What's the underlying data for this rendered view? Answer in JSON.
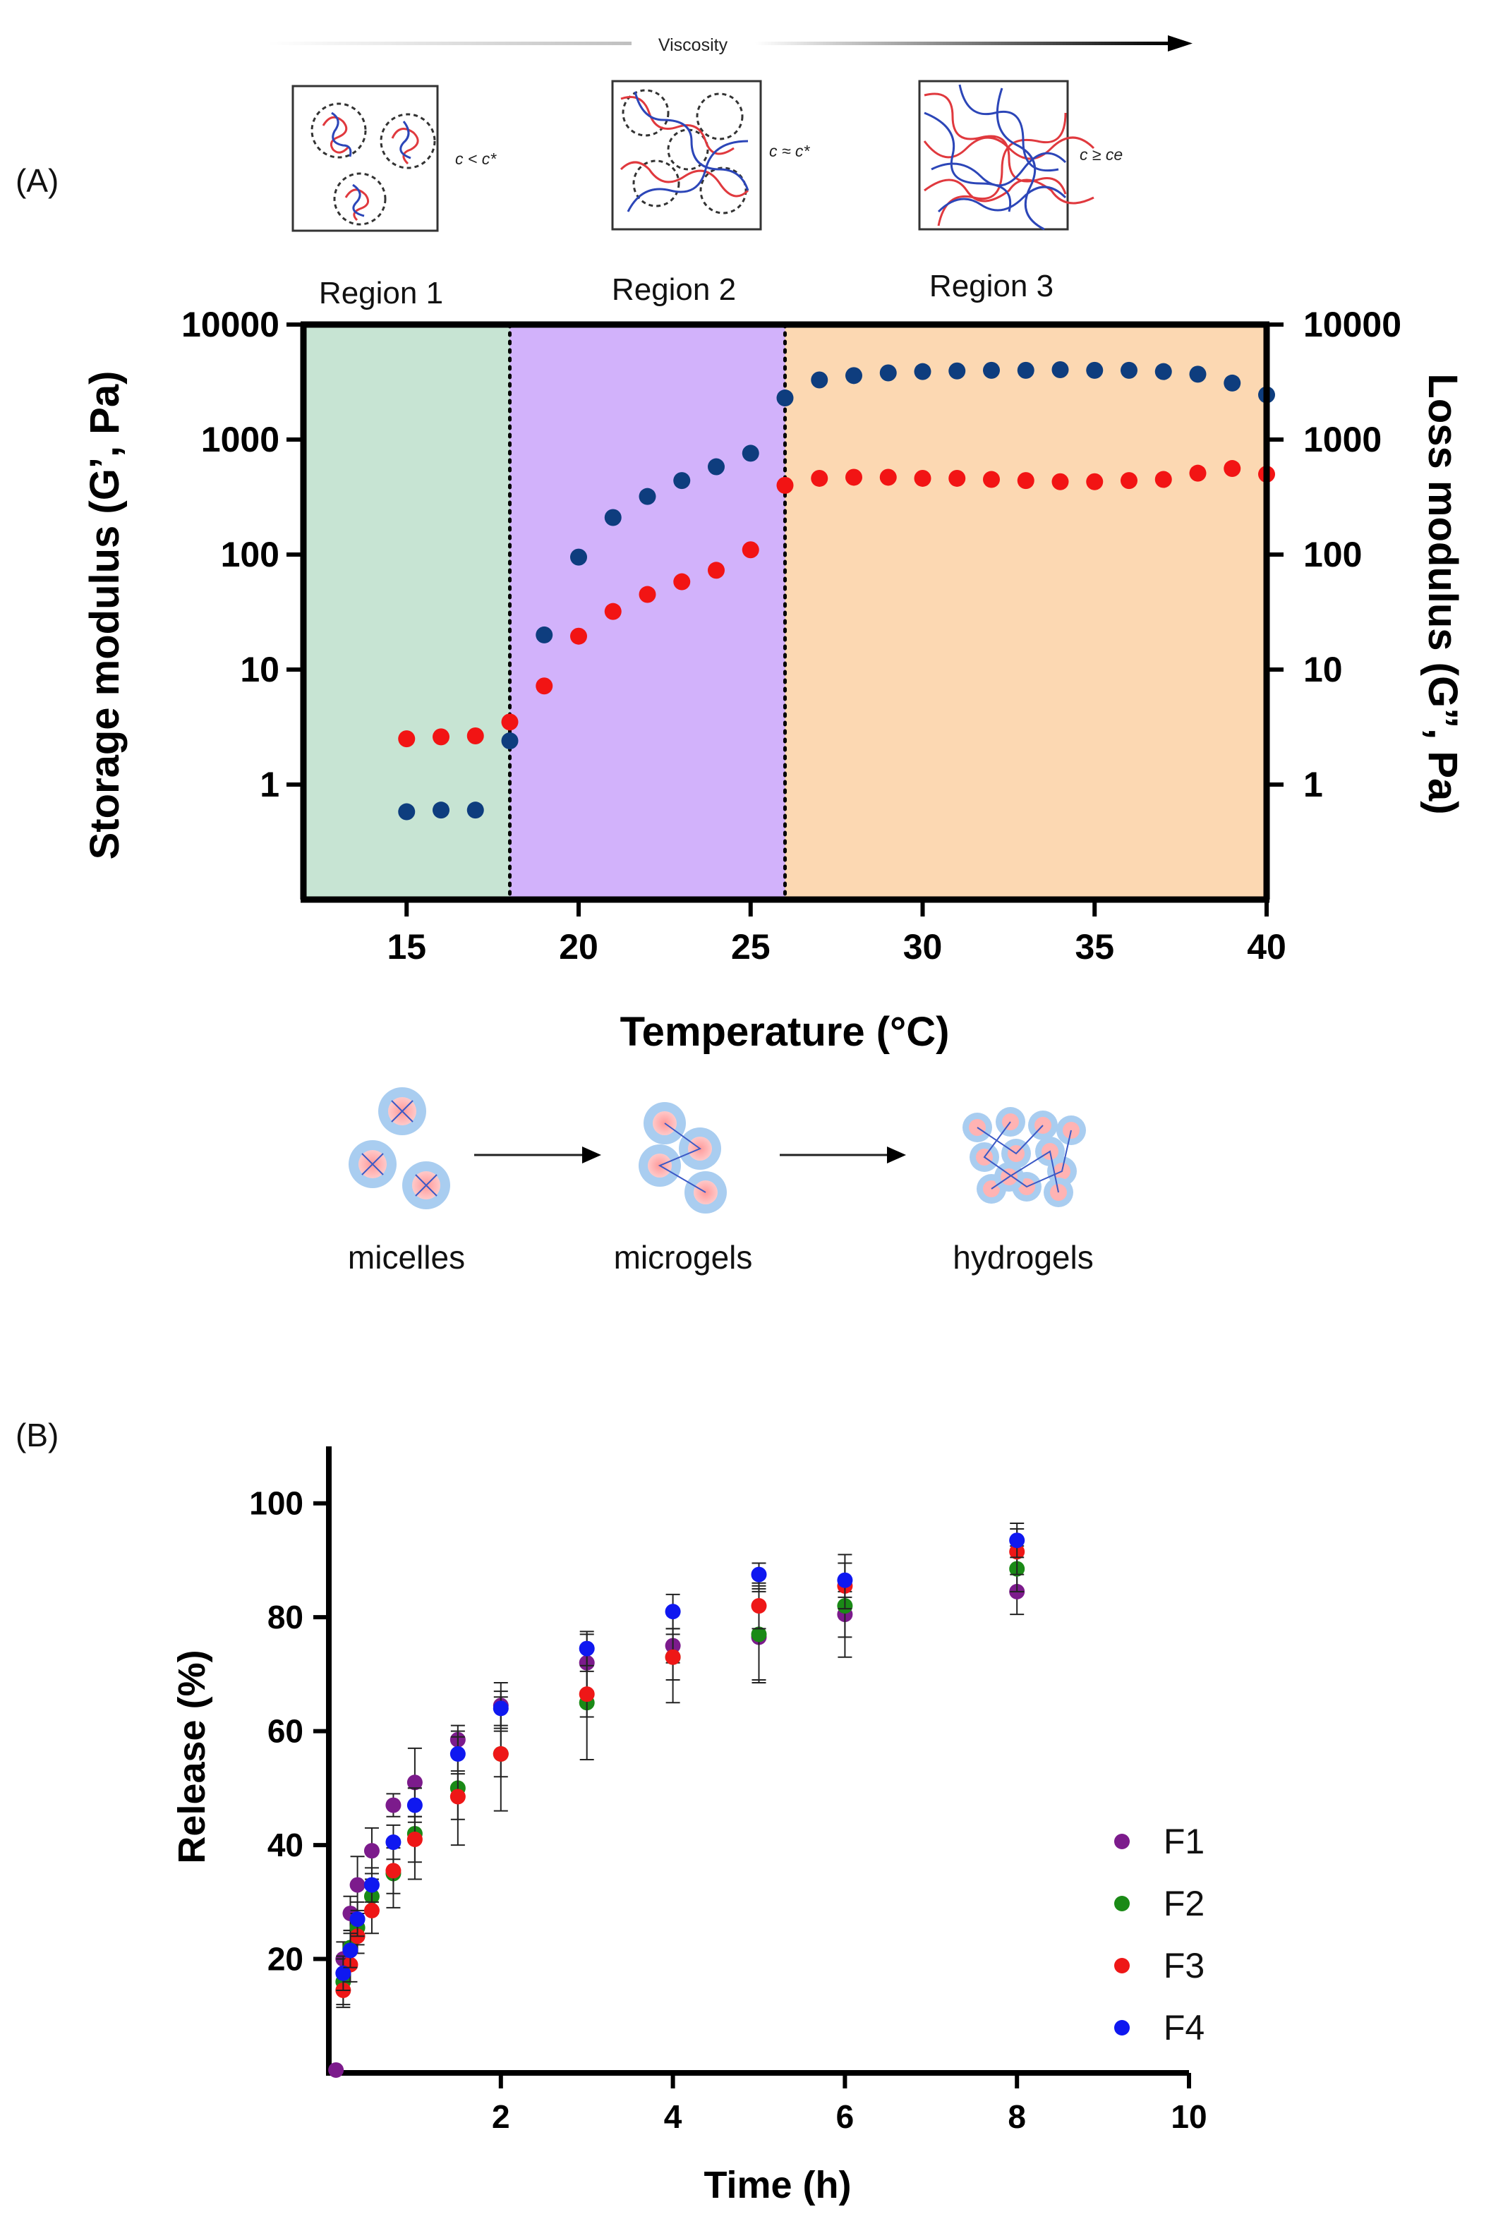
{
  "panel_labels": {
    "a": "(A)",
    "b": "(B)"
  },
  "schematic": {
    "viscosity_label": "Viscosity",
    "concentration_labels": [
      "c < c*",
      "c ≈ c*",
      "c ≥ ce"
    ],
    "stage_labels": [
      "micelles",
      "microgels",
      "hydrogels"
    ]
  },
  "colors": {
    "region1": "#c7e4d3",
    "region2": "#d2b2fb",
    "region3": "#fcd8b2",
    "storage": "#0e3d7e",
    "loss": "#f21414",
    "F1": "#7c1b8c",
    "F2": "#1a8a16",
    "F3": "#ee1717",
    "F4": "#0f18f0"
  },
  "chart_data": [
    {
      "type": "scatter",
      "xlabel": "Temperature (°C)",
      "ylabel": "Storage modulus (G’, Pa)",
      "ylabel_right": "Loss modulus (G”, Pa)",
      "xlim": [
        12,
        40
      ],
      "ylim": [
        0.1,
        10000
      ],
      "yscale": "log",
      "x_ticks": [
        15,
        20,
        25,
        30,
        35,
        40
      ],
      "y_ticks": [
        1,
        10,
        100,
        1000,
        10000
      ],
      "y_tick_labels": [
        "1",
        "10",
        "100",
        "1000",
        "10000"
      ],
      "region_labels": [
        "Region 1",
        "Region 2",
        "Region 3"
      ],
      "region_bounds": [
        [
          12,
          18
        ],
        [
          18,
          26
        ],
        [
          26,
          40
        ]
      ],
      "boundaries": [
        18,
        26
      ],
      "series": [
        {
          "key": "storage",
          "x": [
            15,
            16,
            17,
            18,
            19,
            20,
            21,
            22,
            23,
            24,
            25,
            26,
            27,
            28,
            29,
            30,
            31,
            32,
            33,
            34,
            35,
            36,
            37,
            38,
            39,
            40
          ],
          "y": [
            0.58,
            0.6,
            0.6,
            2.4,
            20,
            95,
            210,
            320,
            440,
            580,
            760,
            2300,
            3300,
            3600,
            3800,
            3900,
            3950,
            4000,
            4000,
            4050,
            4000,
            4000,
            3900,
            3700,
            3100,
            2450
          ]
        },
        {
          "key": "loss",
          "x": [
            15,
            16,
            17,
            18,
            19,
            20,
            21,
            22,
            23,
            24,
            25,
            26,
            27,
            28,
            29,
            30,
            31,
            32,
            33,
            34,
            35,
            36,
            37,
            38,
            39,
            40
          ],
          "y": [
            2.5,
            2.6,
            2.65,
            3.5,
            7.2,
            19.5,
            32,
            45,
            58,
            73,
            110,
            400,
            460,
            470,
            470,
            460,
            460,
            450,
            440,
            430,
            430,
            440,
            450,
            510,
            560,
            500
          ]
        }
      ]
    },
    {
      "type": "scatter",
      "xlabel": "Time (h)",
      "ylabel": "Release (%)",
      "xlim": [
        0,
        10
      ],
      "ylim": [
        0,
        110
      ],
      "x_ticks": [
        2,
        4,
        6,
        8,
        10
      ],
      "y_ticks": [
        20,
        40,
        60,
        80,
        100
      ],
      "error_bars": true,
      "legend_position": "bottom-right",
      "series": [
        {
          "name": "F1",
          "x": [
            0.083,
            0.167,
            0.25,
            0.333,
            0.5,
            0.75,
            1,
            1.5,
            2,
            3,
            4,
            5,
            6,
            8
          ],
          "y": [
            0.5,
            20,
            28,
            33,
            39,
            47,
            51,
            58.5,
            64.5,
            72,
            75,
            76.5,
            80.5,
            84.5
          ],
          "err": [
            0,
            3,
            3,
            5,
            4,
            2,
            6,
            2.5,
            4,
            5,
            3,
            8,
            4,
            4
          ]
        },
        {
          "name": "F2",
          "x": [
            0.167,
            0.25,
            0.333,
            0.5,
            0.75,
            1,
            1.5,
            2,
            3,
            4,
            5,
            6,
            8
          ],
          "y": [
            16,
            22,
            25.5,
            31,
            35,
            42,
            50,
            56,
            65,
            73,
            77,
            82,
            88.5
          ],
          "err": [
            4,
            3,
            3,
            3,
            6,
            8,
            10,
            10,
            10,
            8,
            8,
            9,
            4
          ]
        },
        {
          "name": "F3",
          "x": [
            0.167,
            0.25,
            0.333,
            0.5,
            0.75,
            1,
            1.5,
            2,
            3,
            4,
            5,
            6,
            8
          ],
          "y": [
            14.5,
            19,
            24,
            28.5,
            35.5,
            41,
            48.5,
            56,
            66.5,
            73,
            82,
            85.5,
            91.5
          ],
          "err": [
            3,
            3,
            3,
            4,
            4,
            4,
            4,
            4,
            4,
            4,
            4,
            4,
            4
          ]
        },
        {
          "name": "F4",
          "x": [
            0.167,
            0.25,
            0.333,
            0.5,
            0.75,
            1,
            1.5,
            2,
            3,
            4,
            5,
            6,
            8
          ],
          "y": [
            17.5,
            21.5,
            27,
            33,
            40.5,
            47,
            56,
            64,
            74.5,
            81,
            87.5,
            86.5,
            93.5
          ],
          "err": [
            3,
            3,
            3,
            3,
            3,
            3,
            3,
            3,
            3,
            3,
            2,
            3,
            3
          ]
        }
      ]
    }
  ]
}
